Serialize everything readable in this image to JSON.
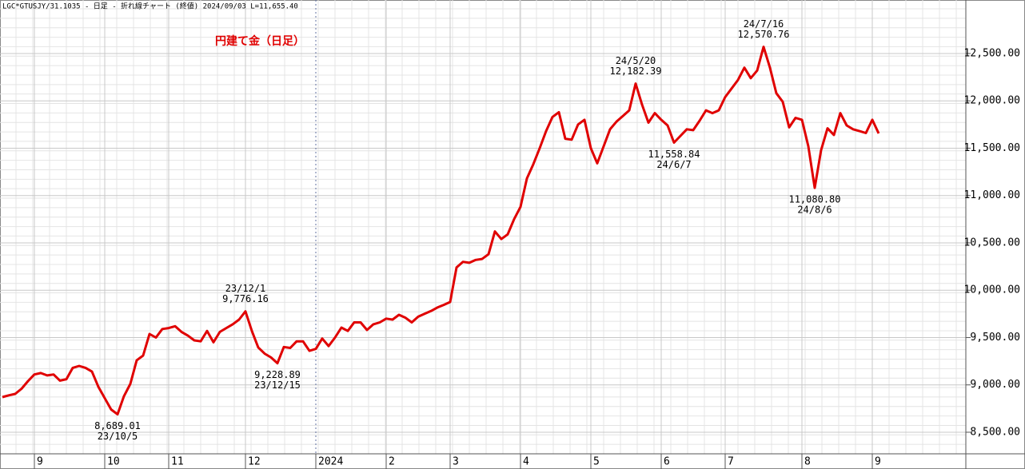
{
  "header": "LGC*GTUSJY/31.1035 - 日足 - 折れ線チャート (終値)  2024/09/03 L=11,655.40",
  "chart_data": {
    "type": "line",
    "title": "円建て金（日足）",
    "color": "#e00000",
    "grid": true,
    "categories": [
      null,
      null,
      null,
      null,
      null,
      "9",
      null,
      null,
      null,
      null,
      null,
      null,
      null,
      null,
      null,
      null,
      "10",
      null,
      null,
      null,
      null,
      null,
      null,
      null,
      null,
      null,
      "11",
      null,
      null,
      null,
      null,
      null,
      null,
      null,
      null,
      null,
      null,
      null,
      "12",
      null,
      null,
      null,
      null,
      null,
      null,
      null,
      null,
      null,
      null,
      "2024",
      null,
      null,
      null,
      null,
      null,
      null,
      null,
      null,
      null,
      null,
      "2",
      null,
      null,
      null,
      null,
      null,
      null,
      null,
      null,
      null,
      "3",
      null,
      null,
      null,
      null,
      null,
      null,
      null,
      null,
      null,
      null,
      "4",
      null,
      null,
      null,
      null,
      null,
      null,
      null,
      null,
      null,
      null,
      "5",
      null,
      null,
      null,
      null,
      null,
      null,
      null,
      null,
      null,
      null,
      "6",
      null,
      null,
      null,
      null,
      null,
      null,
      null,
      null,
      null,
      "7",
      null,
      null,
      null,
      null,
      null,
      null,
      null,
      null,
      null,
      null,
      null,
      "8",
      null,
      null,
      null,
      null,
      null,
      null,
      null,
      null,
      null,
      null,
      "9",
      null
    ],
    "values": [
      8871,
      8890,
      8905,
      8960,
      9040,
      9110,
      9125,
      9100,
      9110,
      9045,
      9060,
      9180,
      9200,
      9180,
      9140,
      8980,
      8860,
      8740,
      8689.01,
      8880,
      9010,
      9260,
      9310,
      9538,
      9500,
      9590,
      9600,
      9620,
      9560,
      9520,
      9470,
      9460,
      9570,
      9450,
      9560,
      9600,
      9640,
      9690,
      9776.16,
      9570,
      9395,
      9330,
      9290,
      9228.89,
      9400,
      9390,
      9460,
      9460,
      9360,
      9380,
      9490,
      9410,
      9500,
      9605,
      9570,
      9660,
      9660,
      9580,
      9640,
      9660,
      9700,
      9690,
      9740,
      9710,
      9660,
      9720,
      9750,
      9780,
      9817,
      9845,
      9875,
      10240,
      10300,
      10290,
      10320,
      10330,
      10380,
      10620,
      10540,
      10590,
      10750,
      10880,
      11180,
      11330,
      11500,
      11680,
      11830,
      11880,
      11600,
      11590,
      11750,
      11800,
      11500,
      11340,
      11520,
      11700,
      11780,
      11840,
      11900,
      12182.39,
      11960,
      11770,
      11870,
      11800,
      11740,
      11558.84,
      11630,
      11700,
      11690,
      11790,
      11900,
      11870,
      11900,
      12040,
      12130,
      12220,
      12350,
      12240,
      12320,
      12570.76,
      12350,
      12080,
      11990,
      11720,
      11820,
      11800,
      11520,
      11080.8,
      11480,
      11710,
      11640,
      11870,
      11740,
      11700,
      11680,
      11660,
      11800,
      11655.4
    ],
    "value_labels": [
      null,
      null,
      null,
      null,
      null,
      null,
      null,
      null,
      null,
      null,
      null,
      null,
      null,
      null,
      null,
      null,
      null,
      null,
      "8,689.01",
      null,
      null,
      null,
      null,
      null,
      null,
      null,
      null,
      null,
      null,
      null,
      null,
      null,
      null,
      null,
      null,
      null,
      null,
      null,
      "9,776.16",
      null,
      null,
      null,
      null,
      "9,228.89",
      null,
      null,
      null,
      null,
      null,
      null,
      null,
      null,
      null,
      null,
      null,
      null,
      null,
      null,
      null,
      null,
      null,
      null,
      null,
      null,
      null,
      null,
      null,
      null,
      null,
      null,
      null,
      null,
      null,
      null,
      null,
      null,
      null,
      null,
      null,
      null,
      null,
      null,
      null,
      null,
      null,
      null,
      null,
      null,
      null,
      null,
      null,
      null,
      null,
      null,
      null,
      null,
      null,
      null,
      null,
      "12,182.39",
      null,
      null,
      null,
      null,
      null,
      "11,558.84",
      null,
      null,
      null,
      null,
      null,
      null,
      null,
      null,
      null,
      null,
      null,
      null,
      null,
      "12,570.76",
      null,
      null,
      null,
      null,
      null,
      null,
      null,
      "11,080.80",
      null,
      null,
      null,
      null,
      null,
      null,
      null,
      null,
      null,
      null
    ],
    "date_labels": [
      null,
      null,
      null,
      null,
      null,
      null,
      null,
      null,
      null,
      null,
      null,
      null,
      null,
      null,
      null,
      null,
      null,
      null,
      "23/10/5",
      null,
      null,
      null,
      null,
      null,
      null,
      null,
      null,
      null,
      null,
      null,
      null,
      null,
      null,
      null,
      null,
      null,
      null,
      null,
      "23/12/1",
      null,
      null,
      null,
      null,
      "23/12/15",
      null,
      null,
      null,
      null,
      null,
      null,
      null,
      null,
      null,
      null,
      null,
      null,
      null,
      null,
      null,
      null,
      null,
      null,
      null,
      null,
      null,
      null,
      null,
      null,
      null,
      null,
      null,
      null,
      null,
      null,
      null,
      null,
      null,
      null,
      null,
      null,
      null,
      null,
      null,
      null,
      null,
      null,
      null,
      null,
      null,
      null,
      null,
      null,
      null,
      null,
      null,
      null,
      null,
      null,
      null,
      "24/5/20",
      null,
      null,
      null,
      null,
      null,
      "24/6/7",
      null,
      null,
      null,
      null,
      null,
      null,
      null,
      null,
      null,
      null,
      null,
      null,
      null,
      "24/7/16",
      null,
      null,
      null,
      null,
      null,
      null,
      null,
      "24/8/6",
      null,
      null,
      null,
      null,
      null,
      null,
      null,
      null,
      null,
      null
    ],
    "ylim": [
      8272,
      13065
    ],
    "yticks": [
      {
        "value": 8500,
        "label": "8,500.00"
      },
      {
        "value": 9000,
        "label": "9,000.00"
      },
      {
        "value": 9500,
        "label": "9,500.00"
      },
      {
        "value": 10000,
        "label": "10,000.00"
      },
      {
        "value": 10500,
        "label": "10,500.00"
      },
      {
        "value": 11000,
        "label": "11,000.00"
      },
      {
        "value": 11500,
        "label": "11,500.00"
      },
      {
        "value": 12000,
        "label": "12,000.00"
      },
      {
        "value": 12500,
        "label": "12,500.00"
      }
    ]
  }
}
